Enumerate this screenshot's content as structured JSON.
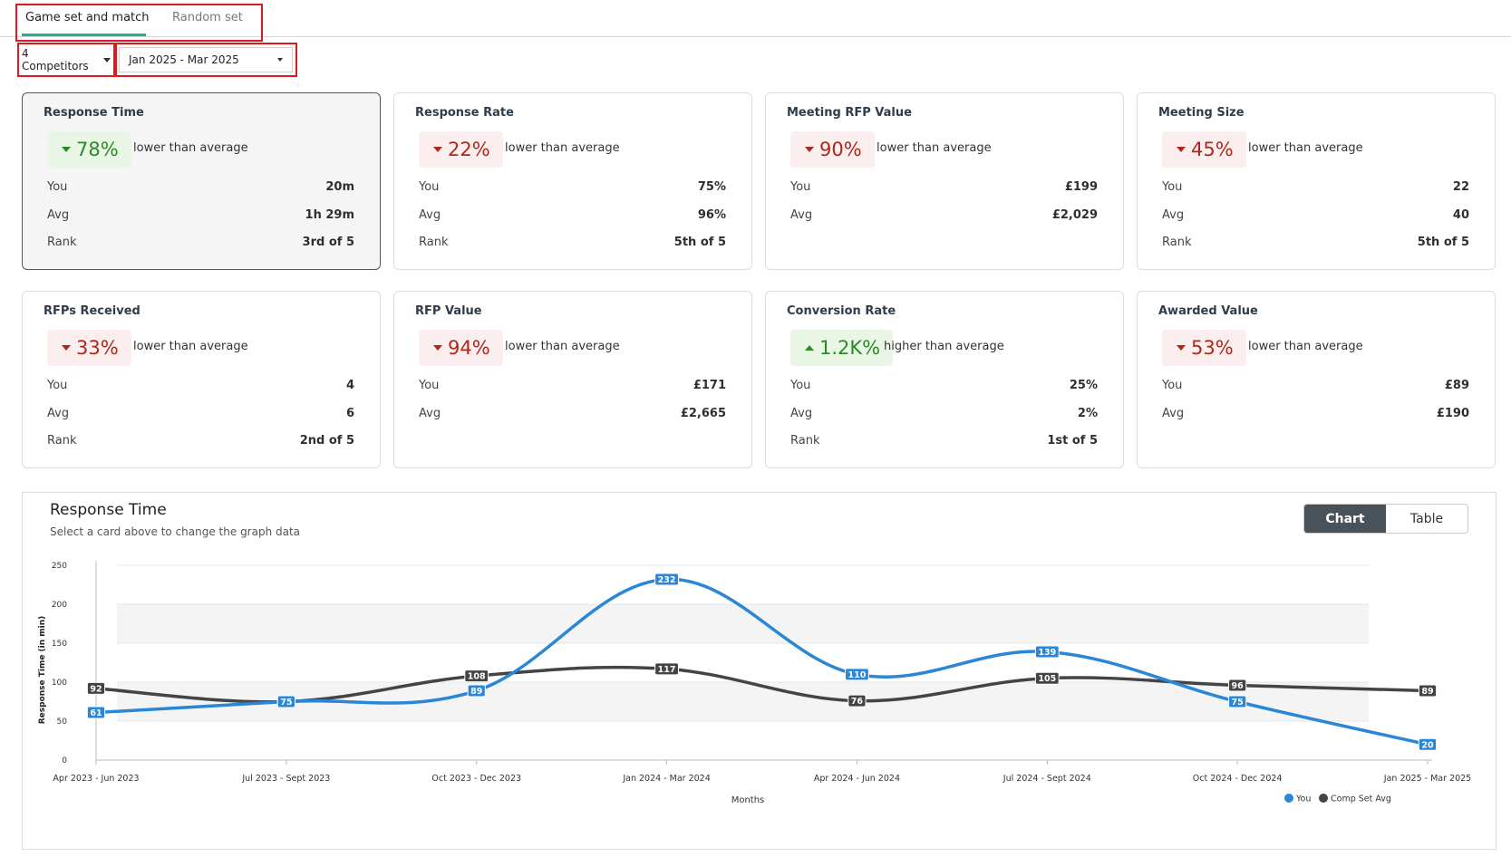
{
  "tabs": [
    {
      "label": "Game set and match",
      "active": true
    },
    {
      "label": "Random set",
      "active": false
    }
  ],
  "filters": {
    "competitors": "4 Competitors",
    "date_range": "Jan 2025 - Mar 2025"
  },
  "cards": [
    {
      "title": "Response Time",
      "direction": "down",
      "change": "78%",
      "comparison": "lower than average",
      "you_label": "You",
      "you": "20m",
      "avg_label": "Avg",
      "avg": "1h 29m",
      "rank_label": "Rank",
      "rank": "3rd of 5",
      "selected": true
    },
    {
      "title": "Response Rate",
      "direction": "down",
      "change": "22%",
      "comparison": "lower than average",
      "you_label": "You",
      "you": "75%",
      "avg_label": "Avg",
      "avg": "96%",
      "rank_label": "Rank",
      "rank": "5th of 5",
      "selected": false
    },
    {
      "title": "Meeting RFP Value",
      "direction": "down",
      "change": "90%",
      "comparison": "lower than average",
      "you_label": "You",
      "you": "£199",
      "avg_label": "Avg",
      "avg": "£2,029",
      "selected": false
    },
    {
      "title": "Meeting Size",
      "direction": "down",
      "change": "45%",
      "comparison": "lower than average",
      "you_label": "You",
      "you": "22",
      "avg_label": "Avg",
      "avg": "40",
      "rank_label": "Rank",
      "rank": "5th of 5",
      "selected": false
    },
    {
      "title": "RFPs Received",
      "direction": "down",
      "change": "33%",
      "comparison": "lower than average",
      "you_label": "You",
      "you": "4",
      "avg_label": "Avg",
      "avg": "6",
      "rank_label": "Rank",
      "rank": "2nd of 5",
      "selected": false
    },
    {
      "title": "RFP Value",
      "direction": "down",
      "change": "94%",
      "comparison": "lower than average",
      "you_label": "You",
      "you": "£171",
      "avg_label": "Avg",
      "avg": "£2,665",
      "selected": false
    },
    {
      "title": "Conversion Rate",
      "direction": "up",
      "change": "1.2K%",
      "comparison": "higher than average",
      "you_label": "You",
      "you": "25%",
      "avg_label": "Avg",
      "avg": "2%",
      "rank_label": "Rank",
      "rank": "1st of 5",
      "selected": false
    },
    {
      "title": "Awarded Value",
      "direction": "down",
      "change": "53%",
      "comparison": "lower than average",
      "you_label": "You",
      "you": "£89",
      "avg_label": "Avg",
      "avg": "£190",
      "selected": false
    }
  ],
  "chart_panel": {
    "title": "Response Time",
    "subtitle": "Select a card above to change the graph data",
    "toggle": {
      "chart": "Chart",
      "table": "Table",
      "active": "Chart"
    }
  },
  "colors": {
    "you": "#2a86d6",
    "avg": "#444444",
    "good": "#2a8a23",
    "bad": "#b0271c",
    "accent": "#1bb394"
  },
  "chart_data": {
    "type": "line",
    "title": "Response Time",
    "xlabel": "Months",
    "ylabel": "Response Time (in min)",
    "ylim": [
      0,
      250
    ],
    "yticks": [
      0,
      50,
      100,
      150,
      200,
      250
    ],
    "categories": [
      "Apr 2023 - Jun 2023",
      "Jul 2023 - Sept 2023",
      "Oct 2023 - Dec 2023",
      "Jan 2024 - Mar 2024",
      "Apr 2024 - Jun 2024",
      "Jul 2024 - Sept 2024",
      "Oct 2024 - Dec 2024",
      "Jan 2025 - Mar 2025"
    ],
    "series": [
      {
        "name": "You",
        "values": [
          61,
          75,
          89,
          232,
          110,
          139,
          75,
          20
        ]
      },
      {
        "name": "Comp Set Avg",
        "values": [
          92,
          75,
          108,
          117,
          76,
          105,
          96,
          89
        ]
      }
    ],
    "legend": "bottom-right"
  }
}
